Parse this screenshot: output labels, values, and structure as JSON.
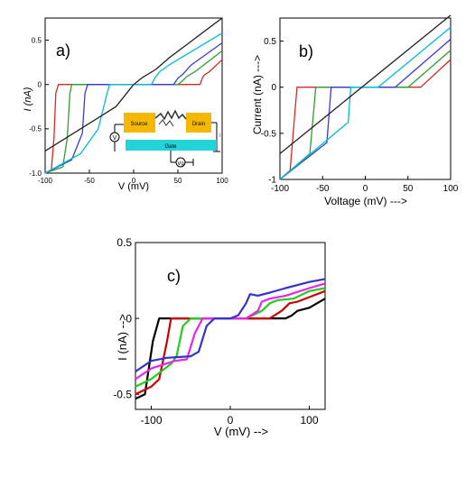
{
  "chart_data": [
    {
      "type": "line",
      "panel_label": "a)",
      "xlabel": "V (mV)",
      "ylabel": "I (nA)",
      "xlim": [
        -100,
        100
      ],
      "ylim": [
        -1.0,
        0.75
      ],
      "xticks": [
        "-100",
        "-50",
        "0",
        "50",
        "100"
      ],
      "yticks": [
        "0.5",
        "0",
        "-0.5",
        "-1.0"
      ],
      "ytick_values": [
        0.5,
        0.0,
        -0.5,
        -1.0
      ],
      "xtick_values": [
        -100,
        -50,
        0,
        50,
        100
      ],
      "series": [
        {
          "color": "#d62728",
          "x": [
            -100,
            -93,
            -90,
            -88,
            -85,
            75,
            78,
            80,
            85,
            100
          ],
          "y": [
            -1.0,
            -0.96,
            -0.6,
            -0.1,
            0.0,
            0.0,
            0.08,
            0.11,
            0.14,
            0.28
          ]
        },
        {
          "color": "#2ca02c",
          "x": [
            -100,
            -80,
            -75,
            -72,
            -70,
            50,
            55,
            60,
            70,
            100
          ],
          "y": [
            -1.0,
            -0.93,
            -0.6,
            -0.1,
            0.0,
            0.0,
            0.04,
            0.09,
            0.15,
            0.38
          ]
        },
        {
          "color": "#3b3bcc",
          "x": [
            -100,
            -70,
            -58,
            -55,
            -52,
            45,
            50,
            55,
            65,
            100
          ],
          "y": [
            -1.0,
            -0.85,
            -0.55,
            -0.1,
            0.0,
            0.0,
            0.07,
            0.11,
            0.22,
            0.47
          ]
        },
        {
          "color": "#00bcd4",
          "x": [
            -100,
            -60,
            -40,
            -30,
            -27,
            20,
            25,
            30,
            40,
            100
          ],
          "y": [
            -1.0,
            -0.78,
            -0.5,
            -0.1,
            0.0,
            0.0,
            0.09,
            0.15,
            0.22,
            0.58
          ]
        },
        {
          "color": "#222222",
          "x": [
            -100,
            -60,
            -20,
            0,
            10,
            25,
            40,
            60,
            80,
            100
          ],
          "y": [
            -0.75,
            -0.5,
            -0.25,
            0.0,
            0.08,
            0.17,
            0.3,
            0.45,
            0.6,
            0.75
          ]
        }
      ],
      "inset": {
        "source_label": "Source",
        "drain_label": "Drain",
        "gate_label": "Gate",
        "v_label": "V",
        "vg_label": "Vg",
        "i_label": "I"
      }
    },
    {
      "type": "line",
      "panel_label": "b)",
      "xlabel": "Voltage (mV) --->",
      "ylabel": "Current (nA) --->",
      "xlim": [
        -100,
        100
      ],
      "ylim": [
        -1.0,
        0.75
      ],
      "xticks": [
        "-100",
        "-50",
        "0",
        "50",
        "100"
      ],
      "yticks": [
        "0.5",
        "0",
        "-0.5",
        "-1"
      ],
      "ytick_values": [
        0.5,
        0.0,
        -0.5,
        -1.0
      ],
      "xtick_values": [
        -100,
        -50,
        0,
        50,
        100
      ],
      "series": [
        {
          "color": "#d62728",
          "x": [
            -100,
            -88,
            -80,
            65,
            100
          ],
          "y": [
            -1.0,
            -0.9,
            0.0,
            0.0,
            0.3
          ]
        },
        {
          "color": "#2ca02c",
          "x": [
            -100,
            -65,
            -58,
            50,
            100
          ],
          "y": [
            -1.0,
            -0.72,
            0.0,
            0.0,
            0.4
          ]
        },
        {
          "color": "#3b3bcc",
          "x": [
            -100,
            -45,
            -40,
            35,
            100
          ],
          "y": [
            -1.0,
            -0.6,
            0.0,
            0.0,
            0.52
          ]
        },
        {
          "color": "#00bcd4",
          "x": [
            -100,
            -20,
            -17,
            15,
            100
          ],
          "y": [
            -1.0,
            -0.38,
            0.0,
            0.0,
            0.65
          ]
        },
        {
          "color": "#222222",
          "x": [
            -100,
            100
          ],
          "y": [
            -0.72,
            0.78
          ]
        }
      ]
    },
    {
      "type": "line",
      "panel_label": "c)",
      "xlabel": "V (mV) -->",
      "ylabel": "I (nA) -->",
      "xlim": [
        -120,
        120
      ],
      "ylim": [
        -0.6,
        0.5
      ],
      "xticks": [
        "-100",
        "0",
        "100"
      ],
      "yticks": [
        "0.5",
        "0",
        "-0.5"
      ],
      "ytick_values": [
        0.5,
        0.0,
        -0.5
      ],
      "xtick_values": [
        -100,
        0,
        100
      ],
      "series": [
        {
          "color": "#000000",
          "x": [
            -120,
            -108,
            -98,
            -90,
            -80,
            0,
            70,
            78,
            85,
            100,
            120
          ],
          "y": [
            -0.53,
            -0.5,
            -0.15,
            0.0,
            0.0,
            0.0,
            0.0,
            0.02,
            0.05,
            0.07,
            0.13
          ]
        },
        {
          "color": "#cc0000",
          "x": [
            -120,
            -100,
            -90,
            -80,
            -75,
            -68,
            -40,
            0,
            30,
            50,
            65,
            75,
            85,
            100,
            120
          ],
          "y": [
            -0.5,
            -0.45,
            -0.4,
            -0.15,
            0.0,
            0.0,
            0.0,
            0.0,
            0.0,
            0.0,
            0.05,
            0.1,
            0.11,
            0.14,
            0.18
          ]
        },
        {
          "color": "#22cc22",
          "x": [
            -120,
            -100,
            -75,
            -68,
            -60,
            -50,
            -20,
            0,
            20,
            40,
            50,
            60,
            80,
            100,
            120
          ],
          "y": [
            -0.45,
            -0.4,
            -0.3,
            -0.25,
            -0.05,
            0.0,
            0.0,
            0.0,
            0.0,
            0.05,
            0.1,
            0.12,
            0.13,
            0.18,
            0.2
          ]
        },
        {
          "color": "#ee22ee",
          "x": [
            -120,
            -100,
            -70,
            -55,
            -45,
            -35,
            -15,
            0,
            20,
            35,
            40,
            50,
            70,
            100,
            120
          ],
          "y": [
            -0.4,
            -0.33,
            -0.28,
            -0.27,
            -0.1,
            0.0,
            0.0,
            0.0,
            0.0,
            0.05,
            0.11,
            0.13,
            0.15,
            0.2,
            0.23
          ]
        },
        {
          "color": "#3333cc",
          "x": [
            -120,
            -100,
            -80,
            -50,
            -40,
            -30,
            -20,
            0,
            10,
            20,
            25,
            35,
            50,
            70,
            100,
            120
          ],
          "y": [
            -0.35,
            -0.28,
            -0.26,
            -0.25,
            -0.22,
            -0.05,
            0.0,
            0.0,
            0.02,
            0.1,
            0.16,
            0.15,
            0.17,
            0.2,
            0.24,
            0.26
          ]
        }
      ]
    }
  ]
}
